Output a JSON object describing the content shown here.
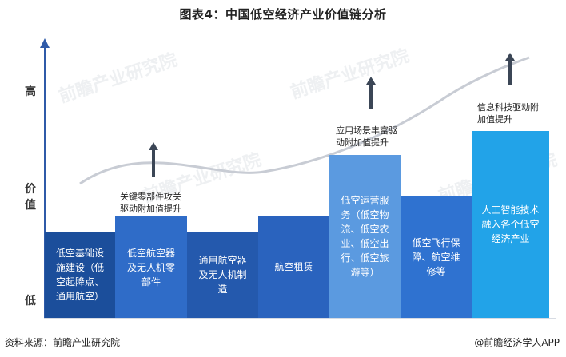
{
  "title": "图表4：中国低空经济产业价值链分析",
  "y_axis": {
    "high": "高",
    "value_chars": [
      "价",
      "值"
    ],
    "low": "低"
  },
  "bars": [
    {
      "lines": [
        "低空基础设",
        "施建设（低",
        "空起降点、",
        "通用航空）"
      ],
      "color": "#1b4e9b"
    },
    {
      "lines": [
        "低空航空器",
        "及无人机零",
        "部件"
      ],
      "color": "#2f6cc8"
    },
    {
      "lines": [
        "通用航空器",
        "及无人机制",
        "造"
      ],
      "color": "#2459ad"
    },
    {
      "lines": [
        "航空租赁"
      ],
      "color": "#2a63be"
    },
    {
      "lines": [
        "低空运营服",
        "务（低空物",
        "流、低空农",
        "业、低空出",
        "行、低空旅",
        "游等）"
      ],
      "color": "#5b9ae0"
    },
    {
      "lines": [
        "低空飞行保",
        "障、航空维",
        "修等"
      ],
      "color": "#2f72d0"
    },
    {
      "lines": [
        "人工智能技术",
        "融入各个低空",
        "经济产业"
      ],
      "color": "#22a3e8"
    }
  ],
  "notes": {
    "note1": [
      "关键零部件攻关",
      "驱动附加值提升"
    ],
    "note2": [
      "应用场景丰富驱",
      "动附加值提升"
    ],
    "note3": [
      "信息科技驱动附",
      "加值提升"
    ]
  },
  "watermark_text": "前瞻产业研究院",
  "footer": {
    "source": "资料来源：前瞻产业研究院",
    "brand": "@前瞻经济学人APP"
  },
  "colors": {
    "axis": "#2f5aa8",
    "arrow": "#3b4656",
    "curve": "#c8ccd4"
  }
}
